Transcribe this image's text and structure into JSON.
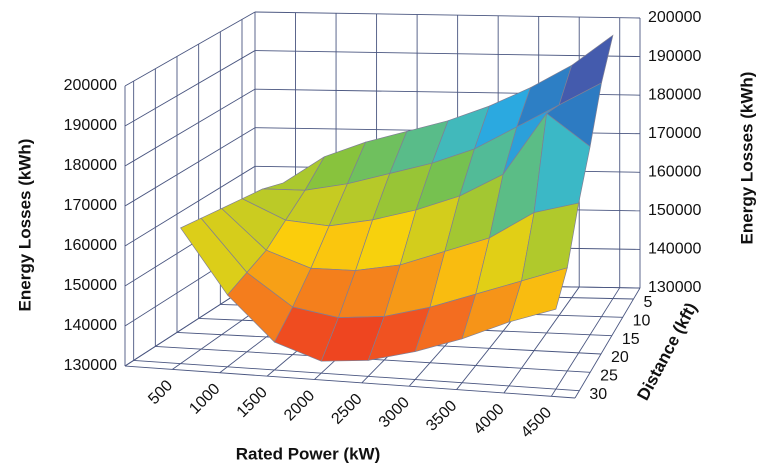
{
  "chart_data": {
    "type": "surface",
    "x_label": "Rated Power (kW)",
    "z_label": "Distance (kft)",
    "y_label": "Energy Losses (kWh)",
    "x": [
      500,
      1000,
      1500,
      2000,
      2500,
      3000,
      3500,
      4000,
      4500
    ],
    "z": [
      5,
      10,
      15,
      20,
      25,
      30
    ],
    "values": [
      [
        158000,
        165000,
        169000,
        172000,
        175000,
        179000,
        184000,
        190000,
        198000
      ],
      [
        160000,
        160000,
        162000,
        165000,
        168000,
        172000,
        178000,
        184000,
        190000
      ],
      [
        161000,
        156000,
        155000,
        157000,
        160000,
        164000,
        170000,
        186000,
        178000
      ],
      [
        162000,
        152000,
        148000,
        148000,
        150000,
        154000,
        158000,
        165000,
        168000
      ],
      [
        163000,
        150000,
        142000,
        140000,
        141000,
        144000,
        148000,
        152000,
        156000
      ],
      [
        164000,
        148000,
        137000,
        133000,
        134000,
        137000,
        141000,
        146000,
        150000
      ]
    ],
    "xlim": [
      0,
      4750
    ],
    "xticks": [
      500,
      1000,
      1500,
      2000,
      2500,
      3000,
      3500,
      4000,
      4500
    ],
    "zlim": [
      2,
      32
    ],
    "zticks": [
      5,
      10,
      15,
      20,
      25,
      30
    ],
    "ylim": [
      130000,
      200000
    ],
    "yticks": [
      130000,
      140000,
      150000,
      160000,
      170000,
      180000,
      190000,
      200000
    ],
    "colorscale": [
      "#e8141c",
      "#f26522",
      "#fbd20b",
      "#7dc242",
      "#2ab5e8",
      "#2e5fb0",
      "#a24a9f"
    ],
    "grid": true
  }
}
